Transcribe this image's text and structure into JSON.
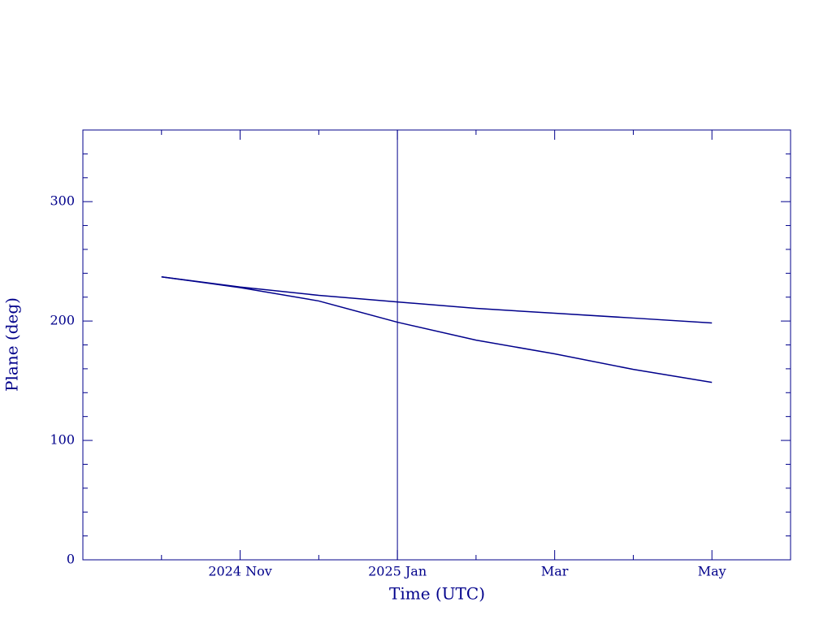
{
  "chart_data": {
    "type": "line",
    "xlabel": "Time (UTC)",
    "ylabel": "Plane (deg)",
    "x": [
      "2024-10",
      "2024-11",
      "2024-12",
      "2025-01",
      "2025-02",
      "2025-03",
      "2025-04",
      "2025-05"
    ],
    "series": [
      {
        "color": "#00008b",
        "values": [
          237,
          228.5,
          221.5,
          216,
          210.6,
          206.5,
          202.5,
          198.4
        ]
      },
      {
        "color": "#00008b",
        "values": [
          237,
          228,
          216.8,
          199,
          184,
          172.5,
          159.5,
          148.6
        ]
      }
    ],
    "marker_x": "2025-01",
    "xlim": [
      "2024-09",
      "2025-06"
    ],
    "xticks": [
      {
        "value": "2024-10",
        "label": null
      },
      {
        "value": "2024-11",
        "label": "2024 Nov"
      },
      {
        "value": "2024-12",
        "label": null
      },
      {
        "value": "2025-01",
        "label": "2025 Jan"
      },
      {
        "value": "2025-02",
        "label": null
      },
      {
        "value": "2025-03",
        "label": "Mar"
      },
      {
        "value": "2025-04",
        "label": null
      },
      {
        "value": "2025-05",
        "label": "May"
      }
    ],
    "ylim": [
      0,
      360
    ],
    "yticks": [
      0,
      {
        "value": 20,
        "label": null
      },
      {
        "value": 40,
        "label": null
      },
      {
        "value": 60,
        "label": null
      },
      {
        "value": 80,
        "label": null
      },
      100,
      {
        "value": 120,
        "label": null
      },
      {
        "value": 140,
        "label": null
      },
      {
        "value": 160,
        "label": null
      },
      {
        "value": 180,
        "label": null
      },
      200,
      {
        "value": 220,
        "label": null
      },
      {
        "value": 240,
        "label": null
      },
      {
        "value": 260,
        "label": null
      },
      {
        "value": 280,
        "label": null
      },
      300,
      {
        "value": 320,
        "label": null
      },
      {
        "value": 340,
        "label": null
      }
    ]
  }
}
